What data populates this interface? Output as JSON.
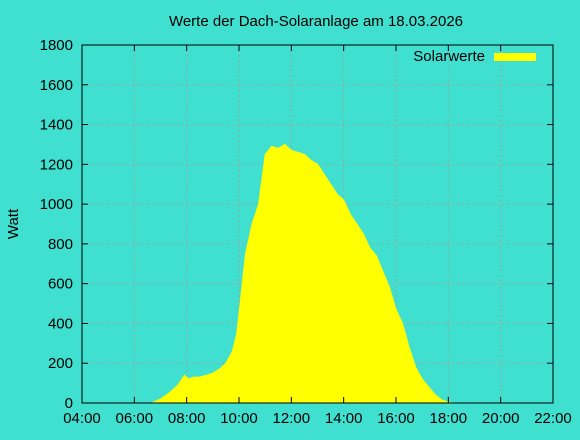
{
  "chart_data": {
    "type": "area",
    "title": "Werte der Dach-Solaranlage am 18.03.2026",
    "xlabel": "",
    "ylabel": "Watt",
    "xlim": [
      "04:00",
      "22:00"
    ],
    "ylim": [
      0,
      1800
    ],
    "x_ticks": [
      "04:00",
      "06:00",
      "08:00",
      "10:00",
      "12:00",
      "14:00",
      "16:00",
      "18:00",
      "20:00",
      "22:00"
    ],
    "y_ticks": [
      "0",
      "200",
      "400",
      "600",
      "800",
      "1000",
      "1200",
      "1400",
      "1600",
      "1800"
    ],
    "grid": true,
    "legend_position": "top-right",
    "colors": {
      "background": "#40e0d0",
      "fill": "#ffff00",
      "grid": "#a0a0a0",
      "frame": "#000000"
    },
    "series": [
      {
        "name": "Solarwerte",
        "x": [
          "06:40",
          "07:00",
          "07:20",
          "07:40",
          "07:55",
          "08:05",
          "08:15",
          "08:30",
          "08:45",
          "09:00",
          "09:15",
          "09:30",
          "09:45",
          "09:55",
          "10:05",
          "10:15",
          "10:30",
          "10:45",
          "11:00",
          "11:15",
          "11:30",
          "11:45",
          "12:00",
          "12:15",
          "12:30",
          "12:45",
          "13:00",
          "13:15",
          "13:30",
          "13:45",
          "14:00",
          "14:15",
          "14:30",
          "14:45",
          "15:00",
          "15:15",
          "15:30",
          "15:45",
          "16:00",
          "16:15",
          "16:30",
          "16:45",
          "17:00",
          "17:15",
          "17:30",
          "17:45",
          "18:00",
          "18:10"
        ],
        "values": [
          0,
          20,
          50,
          90,
          140,
          120,
          130,
          130,
          140,
          150,
          170,
          200,
          260,
          350,
          550,
          750,
          900,
          1000,
          1250,
          1290,
          1280,
          1300,
          1270,
          1260,
          1250,
          1220,
          1200,
          1150,
          1100,
          1050,
          1020,
          950,
          900,
          850,
          780,
          740,
          660,
          580,
          470,
          400,
          280,
          180,
          120,
          80,
          40,
          15,
          5,
          0
        ]
      }
    ]
  }
}
